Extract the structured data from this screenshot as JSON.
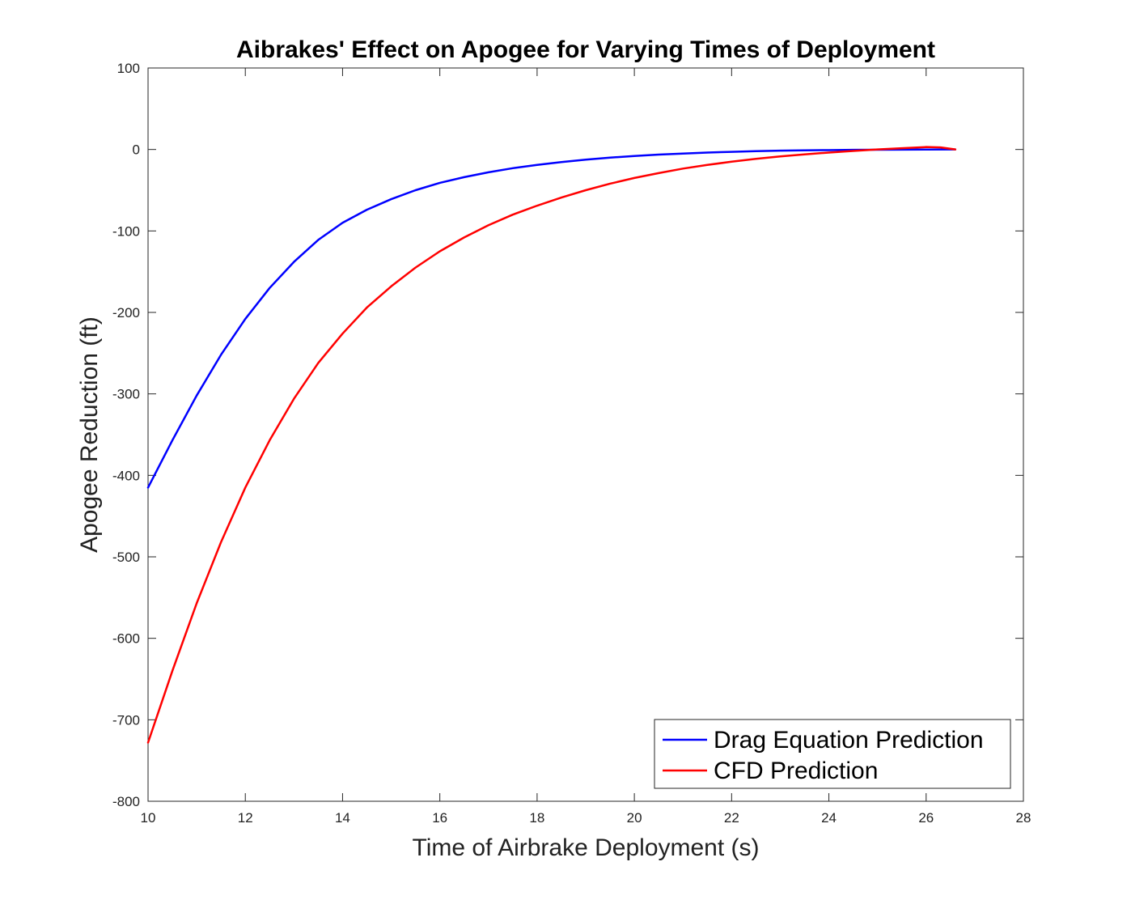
{
  "chart_data": {
    "type": "line",
    "title": "Aibrakes' Effect on Apogee for Varying Times of Deployment",
    "xlabel": "Time of Airbrake Deployment (s)",
    "ylabel": "Apogee Reduction (ft)",
    "xlim": [
      10,
      28
    ],
    "ylim": [
      -800,
      100
    ],
    "xticks": [
      10,
      12,
      14,
      16,
      18,
      20,
      22,
      24,
      26,
      28
    ],
    "yticks": [
      100,
      0,
      -100,
      -200,
      -300,
      -400,
      -500,
      -600,
      -700,
      -800
    ],
    "grid": false,
    "legend_position": "bottom-right",
    "series": [
      {
        "name": "Drag Equation Prediction",
        "color": "#0000ff",
        "x": [
          10,
          10.5,
          11,
          11.5,
          12,
          12.5,
          13,
          13.5,
          14,
          14.5,
          15,
          15.5,
          16,
          16.5,
          17,
          17.5,
          18,
          18.5,
          19,
          19.5,
          20,
          20.5,
          21,
          21.5,
          22,
          22.5,
          23,
          23.5,
          24,
          24.5,
          25,
          25.5,
          26,
          26.6
        ],
        "y": [
          -415,
          -357,
          -302,
          -252,
          -208,
          -170,
          -138,
          -111,
          -90,
          -74,
          -61,
          -50,
          -41,
          -34,
          -28,
          -23,
          -19,
          -15.5,
          -12.5,
          -10,
          -8,
          -6.3,
          -5,
          -3.8,
          -2.9,
          -2.1,
          -1.5,
          -1.1,
          -0.8,
          -0.5,
          -0.3,
          -0.2,
          -0.1,
          0
        ]
      },
      {
        "name": "CFD Prediction",
        "color": "#ff0000",
        "x": [
          10,
          10.5,
          11,
          11.5,
          12,
          12.5,
          13,
          13.5,
          14,
          14.5,
          15,
          15.5,
          16,
          16.5,
          17,
          17.5,
          18,
          18.5,
          19,
          19.5,
          20,
          20.5,
          21,
          21.5,
          22,
          22.5,
          23,
          23.5,
          24,
          24.5,
          25,
          25.5,
          26,
          26.3,
          26.6
        ],
        "y": [
          -728,
          -640,
          -557,
          -482,
          -415,
          -357,
          -306,
          -262,
          -226,
          -194,
          -168,
          -145,
          -125,
          -108,
          -93,
          -80,
          -69,
          -59,
          -50,
          -42,
          -35,
          -29,
          -23.5,
          -19,
          -15,
          -11.5,
          -8.5,
          -6,
          -3.8,
          -1.8,
          0,
          1.5,
          3,
          2.5,
          0
        ]
      }
    ]
  }
}
